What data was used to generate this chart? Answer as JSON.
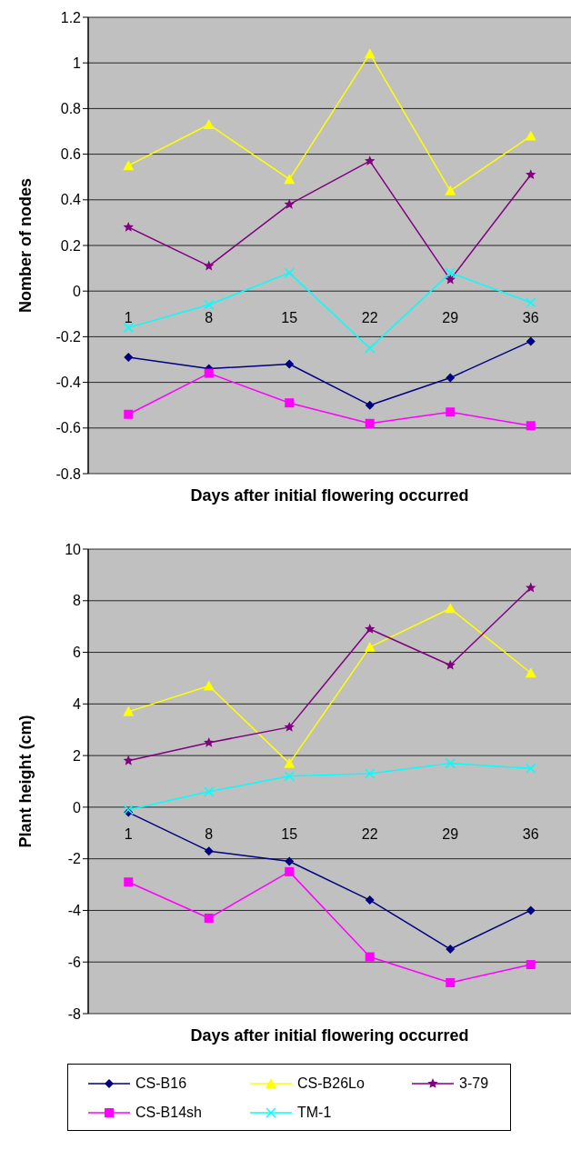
{
  "chart_data": [
    {
      "type": "line",
      "xlabel": "Days after initial flowering occurred",
      "ylabel": "Nomber of nodes",
      "categories": [
        "1",
        "8",
        "15",
        "22",
        "29",
        "36"
      ],
      "ylim": [
        -0.8,
        1.2
      ],
      "yticks": [
        -0.8,
        -0.6,
        -0.4,
        -0.2,
        0,
        0.2,
        0.4,
        0.6,
        0.8,
        1,
        1.2
      ],
      "grid": "y",
      "series": [
        {
          "color": "#000080",
          "marker": "diamond",
          "values": [
            -0.29,
            -0.34,
            -0.32,
            -0.5,
            -0.38,
            -0.22
          ]
        },
        {
          "color": "#ffff00",
          "marker": "triangle",
          "values": [
            0.55,
            0.73,
            0.49,
            1.04,
            0.44,
            0.68
          ]
        },
        {
          "color": "#800080",
          "marker": "star",
          "values": [
            0.28,
            0.11,
            0.38,
            0.57,
            0.05,
            0.51
          ]
        },
        {
          "color": "#ff00ff",
          "marker": "square",
          "values": [
            -0.54,
            -0.36,
            -0.49,
            -0.58,
            -0.53,
            -0.59
          ]
        },
        {
          "color": "#00ffff",
          "marker": "cross",
          "values": [
            -0.16,
            -0.06,
            0.08,
            -0.25,
            0.08,
            -0.05
          ]
        }
      ]
    },
    {
      "type": "line",
      "xlabel": "Days after initial flowering occurred",
      "ylabel": "Plant height (cm)",
      "categories": [
        "1",
        "8",
        "15",
        "22",
        "29",
        "36"
      ],
      "ylim": [
        -8,
        10
      ],
      "yticks": [
        -8,
        -6,
        -4,
        -2,
        0,
        2,
        4,
        6,
        8,
        10
      ],
      "grid": "y",
      "legend": "bottom",
      "series": [
        {
          "name": "CS-B16",
          "color": "#000080",
          "marker": "diamond",
          "values": [
            -0.2,
            -1.7,
            -2.1,
            -3.6,
            -5.5,
            -4.0
          ]
        },
        {
          "name": "CS-B26Lo",
          "color": "#ffff00",
          "marker": "triangle",
          "values": [
            3.7,
            4.7,
            1.7,
            6.2,
            7.7,
            5.2
          ]
        },
        {
          "name": "3-79",
          "color": "#800080",
          "marker": "star",
          "values": [
            1.8,
            2.5,
            3.1,
            6.9,
            5.5,
            8.5
          ]
        },
        {
          "name": "CS-B14sh",
          "color": "#ff00ff",
          "marker": "square",
          "values": [
            -2.9,
            -4.3,
            -2.5,
            -5.8,
            -6.8,
            -6.1
          ]
        },
        {
          "name": "TM-1",
          "color": "#00ffff",
          "marker": "cross",
          "values": [
            -0.1,
            0.6,
            1.2,
            1.3,
            1.7,
            1.5
          ]
        }
      ]
    }
  ]
}
